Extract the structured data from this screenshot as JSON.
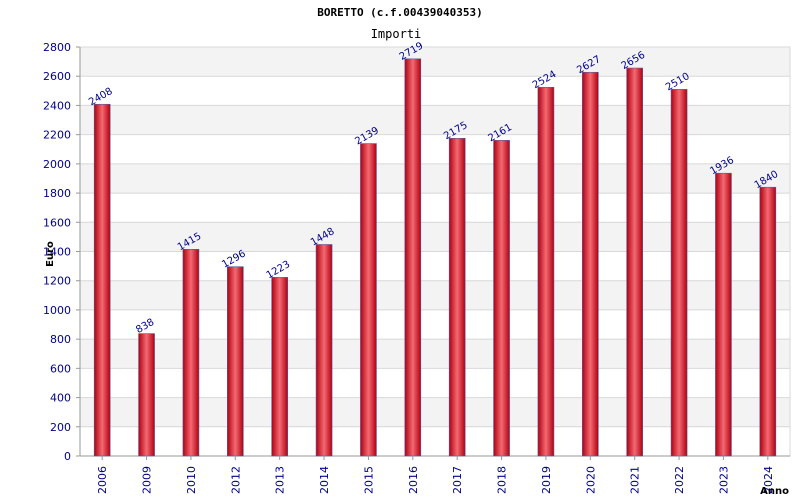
{
  "chart_data": {
    "type": "bar",
    "title": "BORETTO (c.f.00439040353)",
    "subtitle": "Importi",
    "xlabel": "Anno",
    "ylabel": "Euro",
    "categories": [
      "2006",
      "2009",
      "2010",
      "2012",
      "2013",
      "2014",
      "2015",
      "2016",
      "2017",
      "2018",
      "2019",
      "2020",
      "2021",
      "2022",
      "2023",
      "2024"
    ],
    "values": [
      2408,
      838,
      1415,
      1296,
      1223,
      1448,
      2139,
      2719,
      2175,
      2161,
      2524,
      2627,
      2656,
      2510,
      1936,
      1840
    ],
    "ylim": [
      0,
      2800
    ],
    "yticks": [
      0,
      200,
      400,
      600,
      800,
      1000,
      1200,
      1400,
      1600,
      1800,
      2000,
      2200,
      2400,
      2600,
      2800
    ],
    "grid": true,
    "colors": {
      "bar_edge": "#b00010",
      "bar_mid": "#f46a72",
      "bar_outline": "#5a5aa0",
      "band": "#f3f3f3",
      "grid": "#d8d8d8",
      "axis": "#999999"
    }
  }
}
